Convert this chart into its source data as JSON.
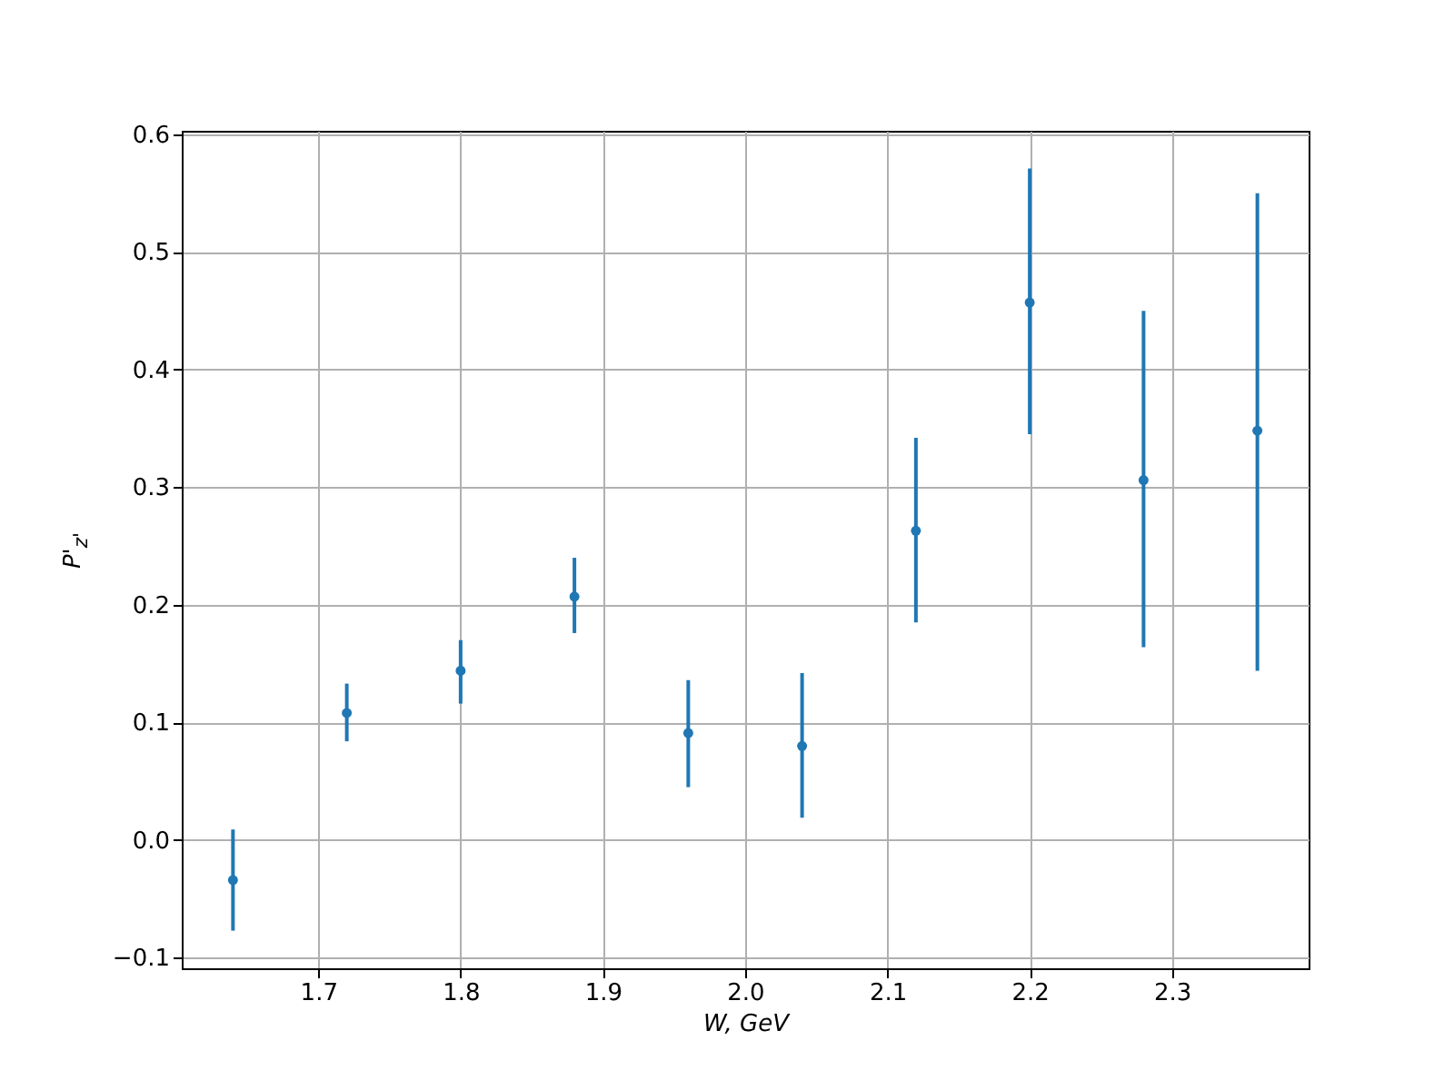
{
  "chart_data": {
    "type": "scatter",
    "xlabel": "W, GeV",
    "ylabel": "P'$_{z'}$",
    "x": [
      1.64,
      1.72,
      1.8,
      1.88,
      1.96,
      2.04,
      2.12,
      2.2,
      2.28,
      2.36
    ],
    "values": [
      -0.034,
      0.108,
      0.144,
      0.207,
      0.091,
      0.08,
      0.263,
      0.457,
      0.306,
      0.348
    ],
    "errors": [
      [
        -0.077,
        0.009
      ],
      [
        0.084,
        0.133
      ],
      [
        0.116,
        0.17
      ],
      [
        0.176,
        0.24
      ],
      [
        0.045,
        0.136
      ],
      [
        0.019,
        0.142
      ],
      [
        0.185,
        0.342
      ],
      [
        0.345,
        0.571
      ],
      [
        0.164,
        0.45
      ],
      [
        0.144,
        0.55
      ]
    ],
    "color": "#1f77b4",
    "marker": "circle",
    "grid": true,
    "xlim": [
      1.604,
      2.396
    ],
    "xticks": [
      1.7,
      1.8,
      1.9,
      {
        "value": 2.0,
        "label": "2.0"
      },
      2.1,
      2.2,
      2.3
    ],
    "ylim": [
      -0.109,
      0.603
    ],
    "yticks": [
      {
        "value": -0.1,
        "label": "−0.1"
      },
      {
        "value": 0,
        "label": "0.0"
      },
      0.1,
      0.2,
      0.3,
      0.4,
      0.5,
      0.6
    ]
  }
}
